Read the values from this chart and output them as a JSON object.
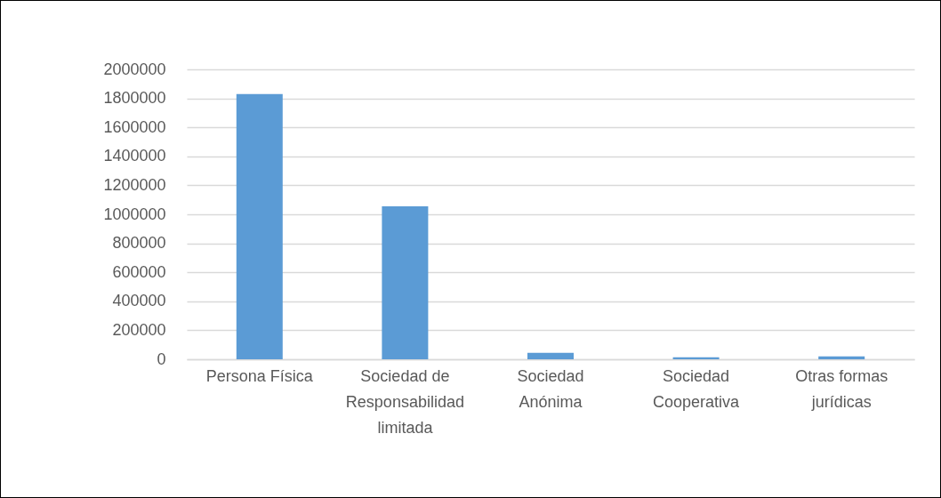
{
  "chart_data": {
    "type": "bar",
    "categories": [
      "Persona Física",
      "Sociedad de Responsabilidad limitada",
      "Sociedad Anónima",
      "Sociedad Cooperativa",
      "Otras formas jurídicas"
    ],
    "values": [
      1830000,
      1055000,
      45000,
      14000,
      20000
    ],
    "color": "#5b9bd5",
    "ylim": [
      0,
      2000000
    ],
    "yticks": [
      0,
      200000,
      400000,
      600000,
      800000,
      1000000,
      1200000,
      1400000,
      1600000,
      1800000,
      2000000
    ],
    "grid": "y"
  }
}
